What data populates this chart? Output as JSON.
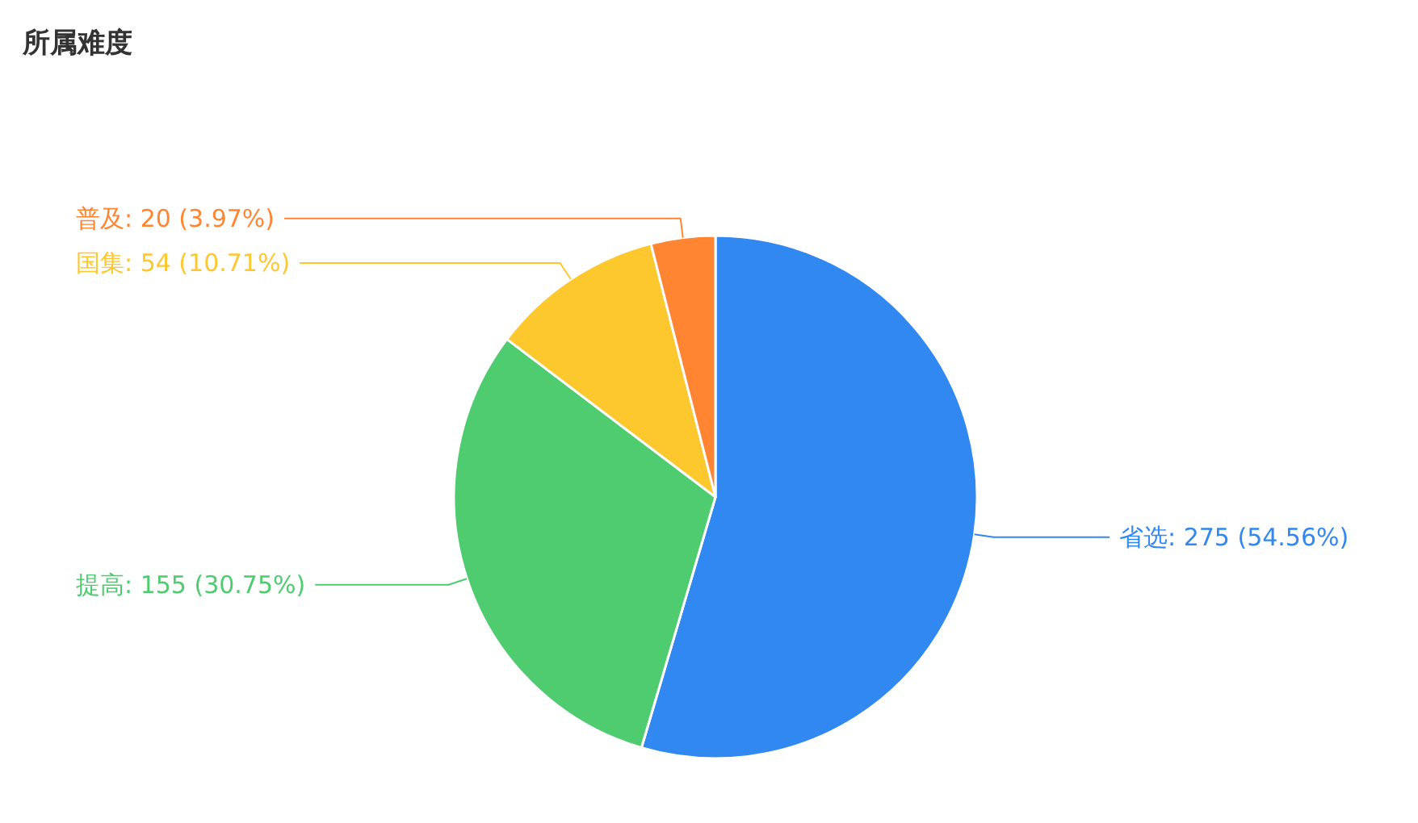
{
  "chart_data": {
    "type": "pie",
    "title": "所属难度",
    "categories": [
      "省选",
      "提高",
      "国集",
      "普及"
    ],
    "values": [
      275,
      155,
      54,
      20
    ],
    "value_labels": [
      "275 (54.56%)",
      "155 (30.75%)",
      "54 (10.71%)",
      "20 (3.97%)"
    ],
    "colors": [
      "#3088f0",
      "#4fcc6f",
      "#fdc72e",
      "#ff8533"
    ]
  }
}
